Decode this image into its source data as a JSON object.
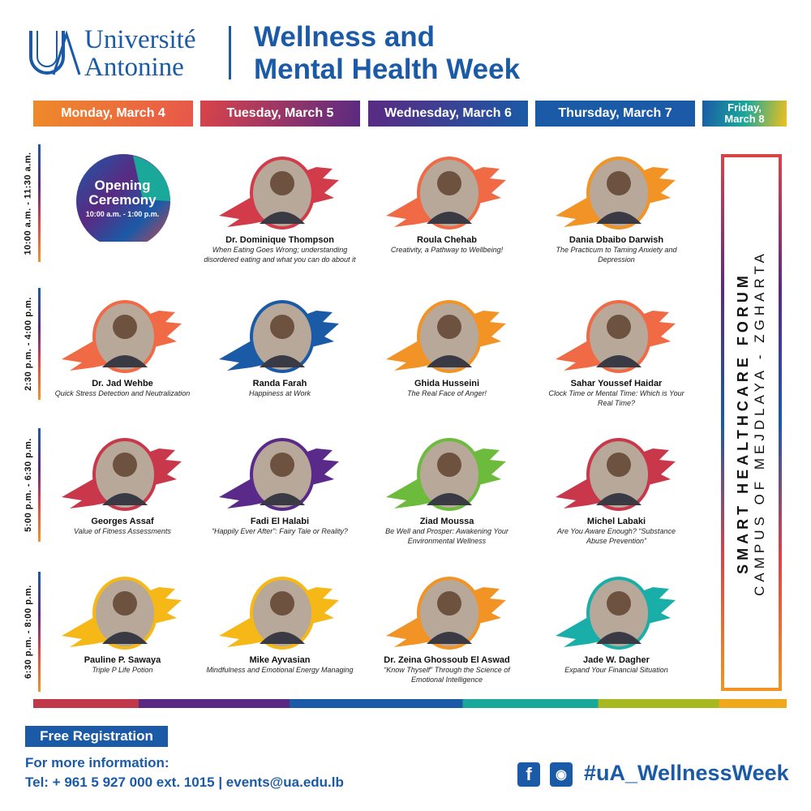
{
  "header": {
    "logo_text_1": "Université",
    "logo_text_2": "Antonine",
    "title_1": "Wellness and",
    "title_2": "Mental Health Week"
  },
  "days": [
    {
      "label": "Monday, March 4",
      "colors": [
        "#ee8a2a",
        "#e8574a"
      ]
    },
    {
      "label": "Tuesday, March 5",
      "colors": [
        "#d9434a",
        "#5a2a82"
      ]
    },
    {
      "label": "Wednesday, March 6",
      "colors": [
        "#5a2a82",
        "#1a5aa6"
      ]
    },
    {
      "label": "Thursday, March 7",
      "colors": [
        "#1a5aa6",
        "#1a5aa6"
      ]
    },
    {
      "label": "Friday, March 8",
      "colors": [
        "#1a5aa6",
        "#1aa89a",
        "#f0c01c"
      ]
    }
  ],
  "times": [
    "10:00 a.m. - 11:30 a.m.",
    "2:30 p.m. - 4:00 p.m.",
    "5:00 p.m. - 6:30 p.m.",
    "6:30 p.m. - 8:00 p.m."
  ],
  "opening": {
    "title": "Opening Ceremony",
    "time": "10:00 a.m. - 1:00 p.m."
  },
  "sessions": [
    [
      null,
      {
        "name": "Dr. Dominique Thompson",
        "topic": "When Eating Goes Wrong; understanding disordered eating and what you can do about it",
        "color": "#d13b4a"
      },
      {
        "name": "Roula Chehab",
        "topic": "Creativity, a Pathway to Wellbeing!",
        "color": "#ef6a45"
      },
      {
        "name": "Dania Dbaibo Darwish",
        "topic": "The Practicum to Taming Anxiety and Depression",
        "color": "#f29325"
      }
    ],
    [
      {
        "name": "Dr. Jad Wehbe",
        "topic": "Quick Stress Detection and Neutralization",
        "color": "#ef6a45"
      },
      {
        "name": "Randa Farah",
        "topic": "Happiness at Work",
        "color": "#1a5aa6"
      },
      {
        "name": "Ghida Husseini",
        "topic": "The Real Face of Anger!",
        "color": "#f29325"
      },
      {
        "name": "Sahar Youssef Haidar",
        "topic": "Clock Time or Mental Time: Which is Your Real Time?",
        "color": "#ef6a45"
      }
    ],
    [
      {
        "name": "Georges Assaf",
        "topic": "Value of Fitness Assessments",
        "color": "#c9384a"
      },
      {
        "name": "Fadi El Halabi",
        "topic": "“Happily Ever After”: Fairy Tale or Reality?",
        "color": "#5a2a8a"
      },
      {
        "name": "Ziad Moussa",
        "topic": "Be Well and Prosper: Awakening Your Environmental Wellness",
        "color": "#6cbb3c"
      },
      {
        "name": "Michel Labaki",
        "topic": "Are You Aware Enough? “Substance Abuse Prevention”",
        "color": "#c9384a"
      }
    ],
    [
      {
        "name": "Pauline P. Sawaya",
        "topic": "Triple P Life Potion",
        "color": "#f5b817"
      },
      {
        "name": "Mike Ayvasian",
        "topic": "Mindfulness and Emotional Energy Managing",
        "color": "#f5b817"
      },
      {
        "name": "Dr. Zeina Ghossoub El Aswad",
        "topic": "“Know Thyself” Through the Science of Emotional Intelligence",
        "color": "#f29325"
      },
      {
        "name": "Jade W. Dagher",
        "topic": "Expand Your Financial Situation",
        "color": "#1aaea8"
      }
    ]
  ],
  "friday": {
    "line_1": "SMART HEALTHCARE FORUM",
    "line_2": "CAMPUS OF MEJDLAYA - ZGHARTA"
  },
  "footer": {
    "registration": "Free Registration",
    "info_1": "For more information:",
    "info_2": "Tel: + 961 5 927 000 ext. 1015 | events@ua.edu.lb",
    "hashtag": "#uA_WellnessWeek",
    "icons": [
      "facebook-icon",
      "instagram-icon"
    ]
  },
  "colors": {
    "brand_blue": "#1a5aa6"
  }
}
